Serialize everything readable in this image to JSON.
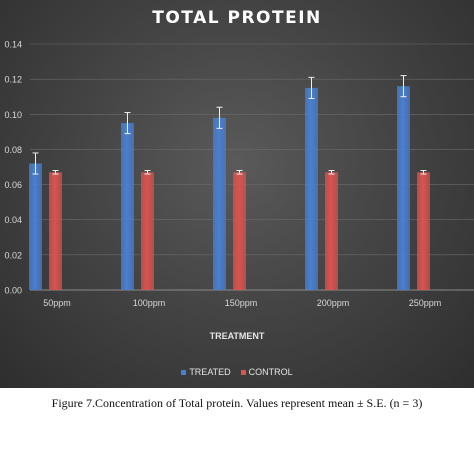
{
  "caption": "Figure 7.Concentration of Total protein. Values represent mean ± S.E. (n = 3)",
  "chart_data": {
    "type": "bar",
    "title": "TOTAL PROTEIN",
    "xlabel": "TREATMENT",
    "ylabel": "",
    "categories": [
      "50ppm",
      "100ppm",
      "150ppm",
      "200ppm",
      "250ppm"
    ],
    "ylim": [
      0,
      0.14
    ],
    "yticks": [
      "0.00",
      "0.02",
      "0.04",
      "0.06",
      "0.08",
      "0.10",
      "0.12",
      "0.14"
    ],
    "grid": true,
    "legend_position": "bottom",
    "series": [
      {
        "name": "TREATED",
        "color": "#4a7fd0",
        "values": [
          0.072,
          0.095,
          0.098,
          0.115,
          0.116
        ],
        "errors": [
          0.006,
          0.006,
          0.006,
          0.006,
          0.006
        ]
      },
      {
        "name": "CONTROL",
        "color": "#d9534f",
        "values": [
          0.067,
          0.067,
          0.067,
          0.067,
          0.067
        ],
        "errors": [
          0.001,
          0.001,
          0.001,
          0.001,
          0.001
        ]
      }
    ]
  }
}
